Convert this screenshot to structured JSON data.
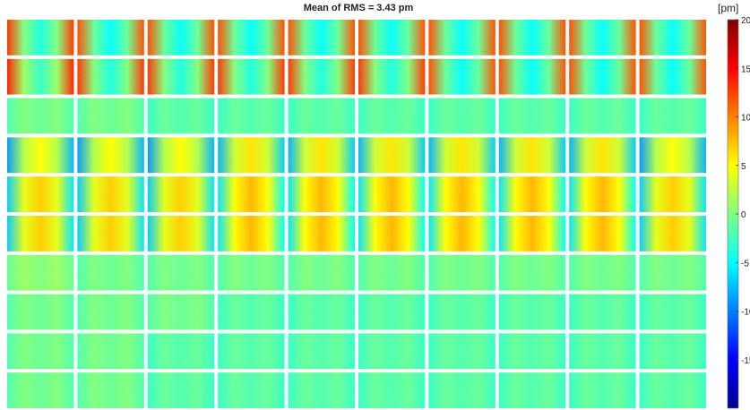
{
  "chart_data": {
    "type": "heatmap",
    "title": "Mean of RMS = 3.43 pm",
    "colorbar": {
      "unit_label": "[pm]",
      "range": [
        -20,
        20
      ],
      "colormap": "jet",
      "tick_labels": [
        "20",
        "15",
        "10",
        "5",
        "0",
        "-5",
        "-10",
        "-15"
      ]
    },
    "grid": {
      "rows": 10,
      "cols": 10,
      "cell_pattern_note_values_in_pm": [
        [
          4,
          3,
          3,
          3,
          3,
          3,
          3,
          3,
          3,
          3
        ],
        [
          5,
          4,
          4,
          4,
          4,
          4,
          3,
          3,
          3,
          3
        ],
        [
          1,
          1,
          0,
          0,
          0,
          0,
          0,
          0,
          0,
          0
        ],
        [
          1,
          1,
          1,
          2,
          2,
          2,
          2,
          2,
          2,
          1
        ],
        [
          3,
          3,
          3,
          4,
          4,
          4,
          4,
          4,
          4,
          3
        ],
        [
          3,
          3,
          3,
          4,
          4,
          4,
          4,
          4,
          4,
          3
        ],
        [
          2,
          1,
          1,
          1,
          1,
          1,
          1,
          1,
          1,
          1
        ],
        [
          1,
          1,
          1,
          0,
          0,
          0,
          0,
          0,
          0,
          0
        ],
        [
          1,
          1,
          0,
          0,
          0,
          0,
          0,
          0,
          0,
          0
        ],
        [
          1,
          1,
          0,
          0,
          0,
          0,
          0,
          0,
          0,
          0
        ]
      ]
    }
  }
}
